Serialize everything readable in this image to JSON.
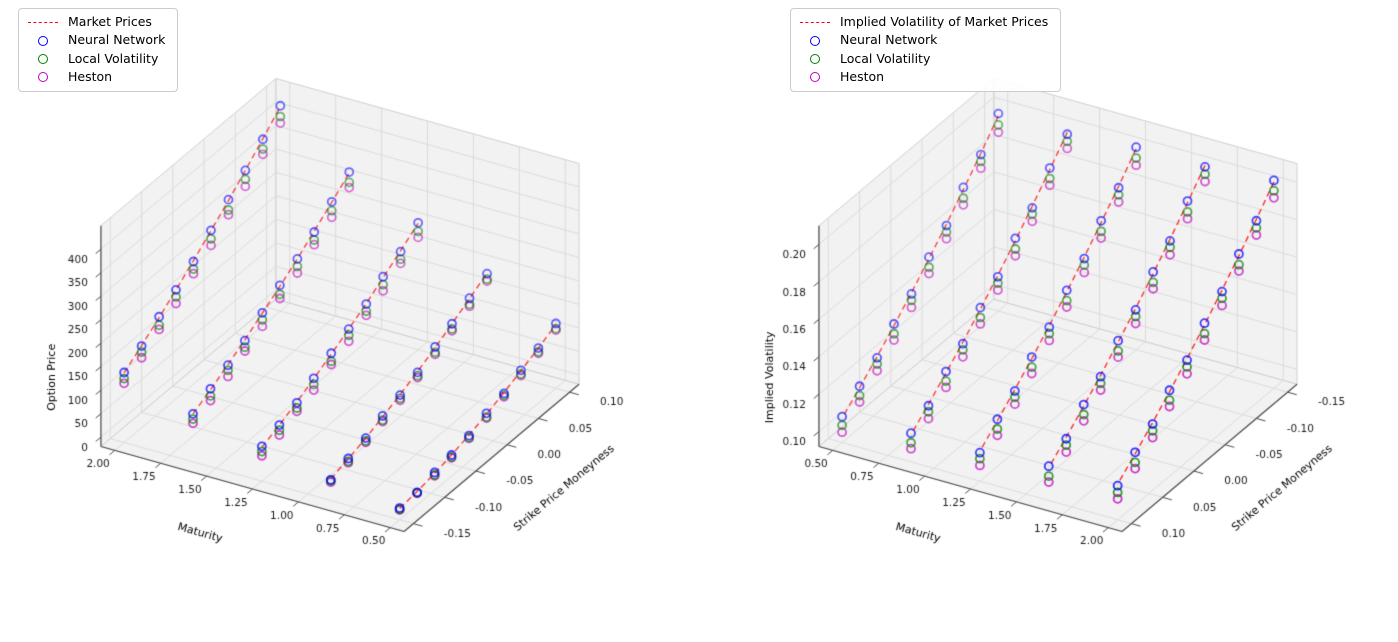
{
  "figure": {
    "background": "#ffffff"
  },
  "chart_data": [
    {
      "id": "option-price-surface",
      "type": "scatter",
      "projection": "3d",
      "title": "",
      "legend": [
        {
          "label": "Market Prices",
          "type": "dashed-line",
          "color": "#ff0000"
        },
        {
          "label": "Neural Network",
          "type": "circle",
          "color": "#0000ff"
        },
        {
          "label": "Local Volatility",
          "type": "circle",
          "color": "#008000"
        },
        {
          "label": "Heston",
          "type": "circle",
          "color": "#bf00bf"
        }
      ],
      "axes": {
        "x": {
          "label": "Maturity",
          "min": 0.425,
          "max": 2.075,
          "inverted": true,
          "ticks": [
            {
              "v": 2.0,
              "label": "2.00"
            },
            {
              "v": 1.75,
              "label": "1.75"
            },
            {
              "v": 1.5,
              "label": "1.50"
            },
            {
              "v": 1.25,
              "label": "1.25"
            },
            {
              "v": 1.0,
              "label": "1.00"
            },
            {
              "v": 0.75,
              "label": "0.75"
            },
            {
              "v": 0.5,
              "label": "0.50"
            }
          ]
        },
        "y": {
          "label": "Strike Price Moneyness",
          "min": -0.165,
          "max": 0.115,
          "inverted": false,
          "ticks": [
            {
              "v": -0.15,
              "label": "-0.15"
            },
            {
              "v": -0.1,
              "label": "-0.10"
            },
            {
              "v": -0.05,
              "label": "-0.05"
            },
            {
              "v": 0.0,
              "label": "0.00"
            },
            {
              "v": 0.05,
              "label": "0.05"
            },
            {
              "v": 0.1,
              "label": "0.10"
            }
          ]
        },
        "z": {
          "label": "Option Price",
          "min": -20,
          "max": 450,
          "inverted": false,
          "ticks": [
            {
              "v": 0,
              "label": "0"
            },
            {
              "v": 50,
              "label": "50"
            },
            {
              "v": 100,
              "label": "100"
            },
            {
              "v": 150,
              "label": "150"
            },
            {
              "v": 200,
              "label": "200"
            },
            {
              "v": 250,
              "label": "250"
            },
            {
              "v": 300,
              "label": "300"
            },
            {
              "v": 350,
              "label": "350"
            },
            {
              "v": 400,
              "label": "400"
            }
          ]
        }
      },
      "maturities": [
        0.5,
        0.875,
        1.25,
        1.625,
        2.0
      ],
      "moneyness": [
        -0.15,
        -0.122,
        -0.094,
        -0.067,
        -0.039,
        -0.011,
        0.017,
        0.044,
        0.072,
        0.1
      ],
      "market_line": {
        "name": "Market Prices",
        "color": "#ff0000",
        "values": [
          [
            4,
            9,
            16,
            25,
            36,
            49,
            64,
            80,
            97,
            116
          ],
          [
            26,
            37,
            50,
            65,
            81,
            99,
            118,
            139,
            161,
            184
          ],
          [
            52,
            68,
            86,
            105,
            126,
            148,
            171,
            196,
            222,
            249
          ],
          [
            82,
            102,
            124,
            147,
            172,
            198,
            225,
            254,
            284,
            315
          ],
          [
            128,
            155,
            183,
            212,
            243,
            275,
            308,
            342,
            378,
            415
          ]
        ]
      },
      "series": [
        {
          "name": "Neural Network",
          "color": "#0000ff",
          "values": [
            [
              5,
              7,
              18,
              25,
              35,
              51,
              62,
              81,
              97,
              118
            ],
            [
              24,
              38,
              50,
              67,
              80,
              97,
              120,
              139,
              162,
              183
            ],
            [
              54,
              68,
              84,
              106,
              128,
              148,
              170,
              198,
              220,
              250
            ],
            [
              82,
              104,
              123,
              145,
              173,
              200,
              225,
              252,
              285,
              317
            ],
            [
              129,
              154,
              185,
              212,
              241,
              276,
              310,
              342,
              377,
              417
            ]
          ]
        },
        {
          "name": "Local Volatility",
          "color": "#008000",
          "values": [
            [
              2,
              6,
              13,
              21,
              31,
              43,
              58,
              73,
              89,
              107
            ],
            [
              22,
              32,
              44,
              58,
              73,
              90,
              108,
              128,
              149,
              171
            ],
            [
              43,
              57,
              73,
              93,
              111,
              135,
              155,
              181,
              204,
              232
            ],
            [
              71,
              89,
              112,
              131,
              158,
              181,
              209,
              235,
              266,
              295
            ],
            [
              116,
              141,
              167,
              197,
              225,
              258,
              288,
              323,
              356,
              394
            ]
          ]
        },
        {
          "name": "Heston",
          "color": "#bf00bf",
          "values": [
            [
              1,
              5,
              11,
              19,
              29,
              41,
              55,
              70,
              86,
              104
            ],
            [
              19,
              29,
              41,
              55,
              69,
              86,
              104,
              124,
              145,
              167
            ],
            [
              34,
              47,
              66,
              81,
              104,
              122,
              146,
              168,
              195,
              219
            ],
            [
              62,
              79,
              99,
              123,
              144,
              172,
              195,
              225,
              252,
              284
            ],
            [
              106,
              129,
              158,
              183,
              215,
              244,
              278,
              308,
              345,
              380
            ]
          ]
        }
      ]
    },
    {
      "id": "implied-volatility-surface",
      "type": "scatter",
      "projection": "3d",
      "title": "",
      "legend": [
        {
          "label": "Implied Volatility of Market Prices",
          "type": "dashed-line",
          "color": "#ff0000"
        },
        {
          "label": "Neural Network",
          "type": "circle",
          "color": "#0000ff"
        },
        {
          "label": "Local Volatility",
          "type": "circle",
          "color": "#008000"
        },
        {
          "label": "Heston",
          "type": "circle",
          "color": "#bf00bf"
        }
      ],
      "axes": {
        "x": {
          "label": "Maturity",
          "min": 0.425,
          "max": 2.075,
          "inverted": false,
          "ticks": [
            {
              "v": 0.5,
              "label": "0.50"
            },
            {
              "v": 0.75,
              "label": "0.75"
            },
            {
              "v": 1.0,
              "label": "1.00"
            },
            {
              "v": 1.25,
              "label": "1.25"
            },
            {
              "v": 1.5,
              "label": "1.50"
            },
            {
              "v": 1.75,
              "label": "1.75"
            },
            {
              "v": 2.0,
              "label": "2.00"
            }
          ]
        },
        "y": {
          "label": "Strike Price Moneyness",
          "min": -0.165,
          "max": 0.115,
          "inverted": true,
          "ticks": [
            {
              "v": -0.15,
              "label": "-0.15"
            },
            {
              "v": -0.1,
              "label": "-0.10"
            },
            {
              "v": -0.05,
              "label": "-0.05"
            },
            {
              "v": 0.0,
              "label": "0.00"
            },
            {
              "v": 0.05,
              "label": "0.05"
            },
            {
              "v": 0.1,
              "label": "0.10"
            }
          ]
        },
        "z": {
          "label": "Implied Volatility",
          "min": 0.092,
          "max": 0.21,
          "inverted": false,
          "ticks": [
            {
              "v": 0.1,
              "label": "0.10"
            },
            {
              "v": 0.12,
              "label": "0.12"
            },
            {
              "v": 0.14,
              "label": "0.14"
            },
            {
              "v": 0.16,
              "label": "0.16"
            },
            {
              "v": 0.18,
              "label": "0.18"
            },
            {
              "v": 0.2,
              "label": "0.20"
            }
          ]
        }
      },
      "maturities": [
        0.5,
        0.875,
        1.25,
        1.625,
        2.0
      ],
      "moneyness": [
        -0.15,
        -0.122,
        -0.094,
        -0.067,
        -0.039,
        -0.011,
        0.017,
        0.044,
        0.072,
        0.1
      ],
      "market_line": {
        "name": "Implied Volatility of Market Prices",
        "color": "#ff0000",
        "values": [
          [
            0.1963,
            0.1842,
            0.1726,
            0.1618,
            0.1511,
            0.1409,
            0.1311,
            0.1222,
            0.1134,
            0.105
          ],
          [
            0.1978,
            0.1857,
            0.1741,
            0.1633,
            0.1526,
            0.1424,
            0.1326,
            0.1237,
            0.1149,
            0.1065
          ],
          [
            0.1993,
            0.1872,
            0.1756,
            0.1648,
            0.1541,
            0.1439,
            0.1341,
            0.1252,
            0.1164,
            0.108
          ],
          [
            0.2008,
            0.1887,
            0.1771,
            0.1663,
            0.1556,
            0.1454,
            0.1356,
            0.1267,
            0.1179,
            0.1095
          ],
          [
            0.2023,
            0.1902,
            0.1786,
            0.1678,
            0.1571,
            0.1469,
            0.1371,
            0.1282,
            0.1194,
            0.111
          ]
        ]
      },
      "series": [
        {
          "name": "Neural Network",
          "color": "#0000ff",
          "values": [
            [
              0.1975,
              0.1835,
              0.1738,
              0.161,
              0.152,
              0.1402,
              0.132,
              0.1215,
              0.1142,
              0.1058
            ],
            [
              0.1968,
              0.1866,
              0.1732,
              0.1645,
              0.1518,
              0.1432,
              0.1318,
              0.1245,
              0.1141,
              0.1073
            ],
            [
              0.2002,
              0.1864,
              0.1766,
              0.164,
              0.1549,
              0.1431,
              0.135,
              0.1244,
              0.1172,
              0.1072
            ],
            [
              0.2,
              0.1896,
              0.1762,
              0.1672,
              0.1548,
              0.1462,
              0.1348,
              0.1275,
              0.1171,
              0.1103
            ],
            [
              0.2031,
              0.1894,
              0.1795,
              0.167,
              0.158,
              0.1461,
              0.1379,
              0.1274,
              0.1202,
              0.1102
            ]
          ]
        },
        {
          "name": "Local Volatility",
          "color": "#008000",
          "values": [
            [
              0.1915,
              0.1798,
              0.168,
              0.1575,
              0.1466,
              0.1368,
              0.1268,
              0.1182,
              0.1092,
              0.1012
            ],
            [
              0.193,
              0.181,
              0.1699,
              0.1588,
              0.1484,
              0.1379,
              0.1285,
              0.1194,
              0.1109,
              0.1022
            ],
            [
              0.1944,
              0.1826,
              0.171,
              0.1605,
              0.1494,
              0.1397,
              0.1296,
              0.1211,
              0.112,
              0.104
            ],
            [
              0.1961,
              0.1838,
              0.1728,
              0.1616,
              0.1512,
              0.1407,
              0.1313,
              0.1222,
              0.1137,
              0.105
            ],
            [
              0.1976,
              0.1856,
              0.1738,
              0.1634,
              0.1524,
              0.1425,
              0.1326,
              0.1238,
              0.1148,
              0.1066
            ]
          ]
        },
        {
          "name": "Heston",
          "color": "#bf00bf",
          "values": [
            [
              0.1875,
              0.1762,
              0.1645,
              0.154,
              0.1432,
              0.133,
              0.1234,
              0.1146,
              0.1058,
              0.0975
            ],
            [
              0.1892,
              0.1774,
              0.166,
              0.1552,
              0.1448,
              0.1345,
              0.1248,
              0.116,
              0.1072,
              0.099
            ],
            [
              0.1906,
              0.1788,
              0.1674,
              0.1566,
              0.146,
              0.136,
              0.1262,
              0.1174,
              0.1086,
              0.1004
            ],
            [
              0.1922,
              0.1802,
              0.1688,
              0.1582,
              0.1475,
              0.1374,
              0.1277,
              0.1188,
              0.11,
              0.1018
            ],
            [
              0.1938,
              0.1818,
              0.1704,
              0.1596,
              0.149,
              0.1388,
              0.1292,
              0.1202,
              0.1115,
              0.1032
            ]
          ]
        }
      ]
    }
  ]
}
